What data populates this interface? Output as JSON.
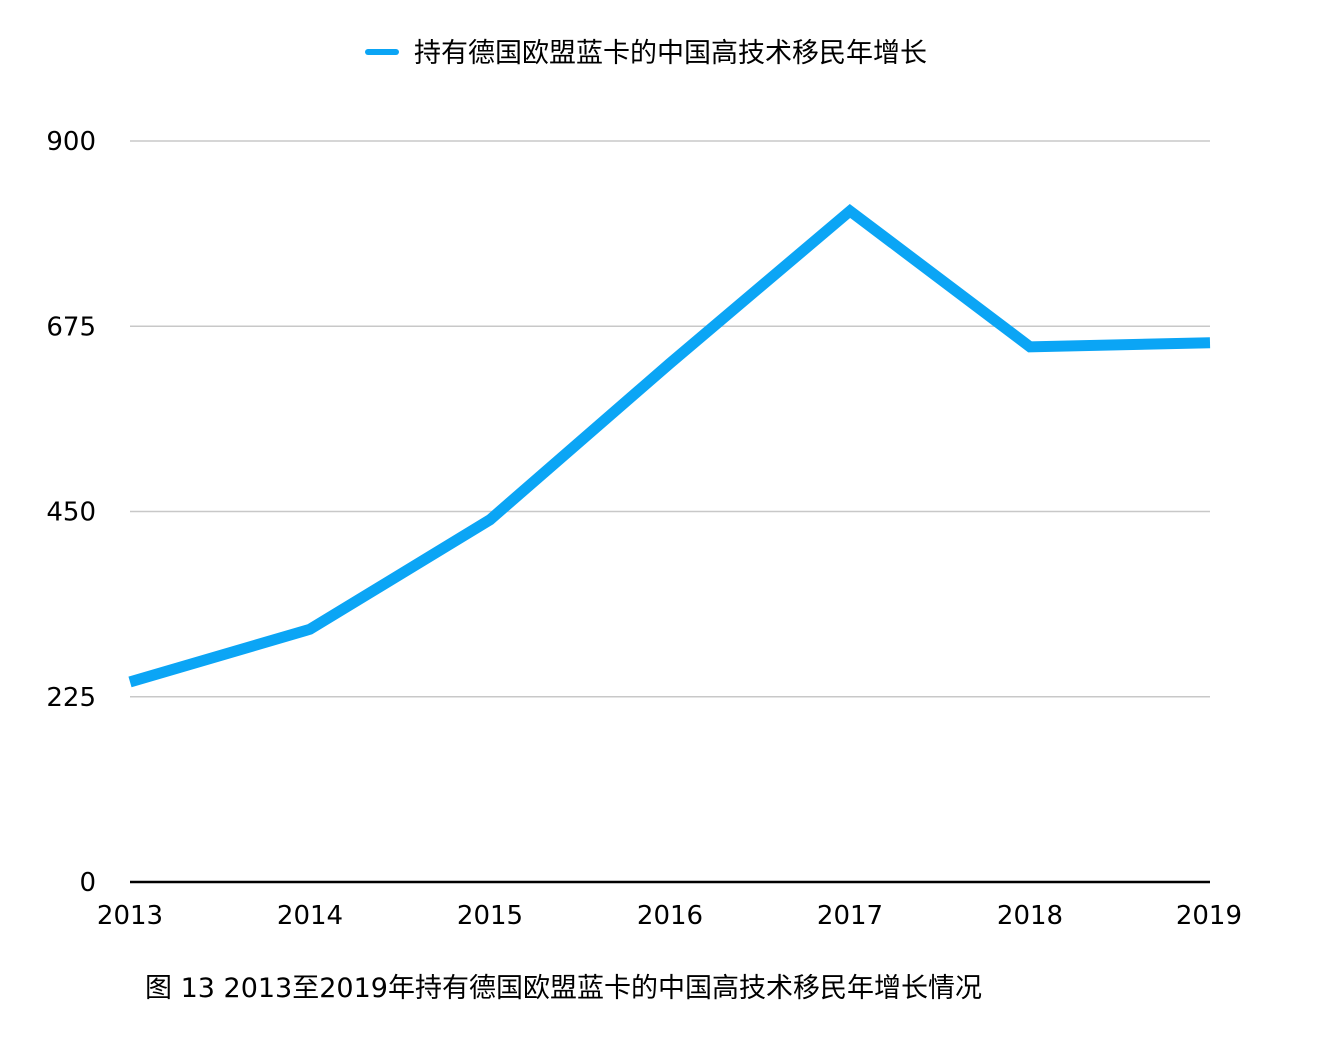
{
  "chart_data": {
    "type": "line",
    "title": "",
    "xlabel": "",
    "ylabel": "",
    "categories": [
      "2013",
      "2014",
      "2015",
      "2016",
      "2017",
      "2018",
      "2019"
    ],
    "series": [
      {
        "name": "持有德国欧盟蓝卡的中国高技术移民年增长",
        "color": "#0ba5f5",
        "values": [
          243,
          307,
          440,
          630,
          815,
          650,
          655
        ]
      }
    ],
    "ylim": [
      0,
      900
    ],
    "yticks": [
      "0",
      "225",
      "450",
      "675",
      "900"
    ],
    "grid": true,
    "legend_position": "top-center"
  },
  "caption": "图 13 2013至2019年持有德国欧盟蓝卡的中国高技术移民年增长情况"
}
